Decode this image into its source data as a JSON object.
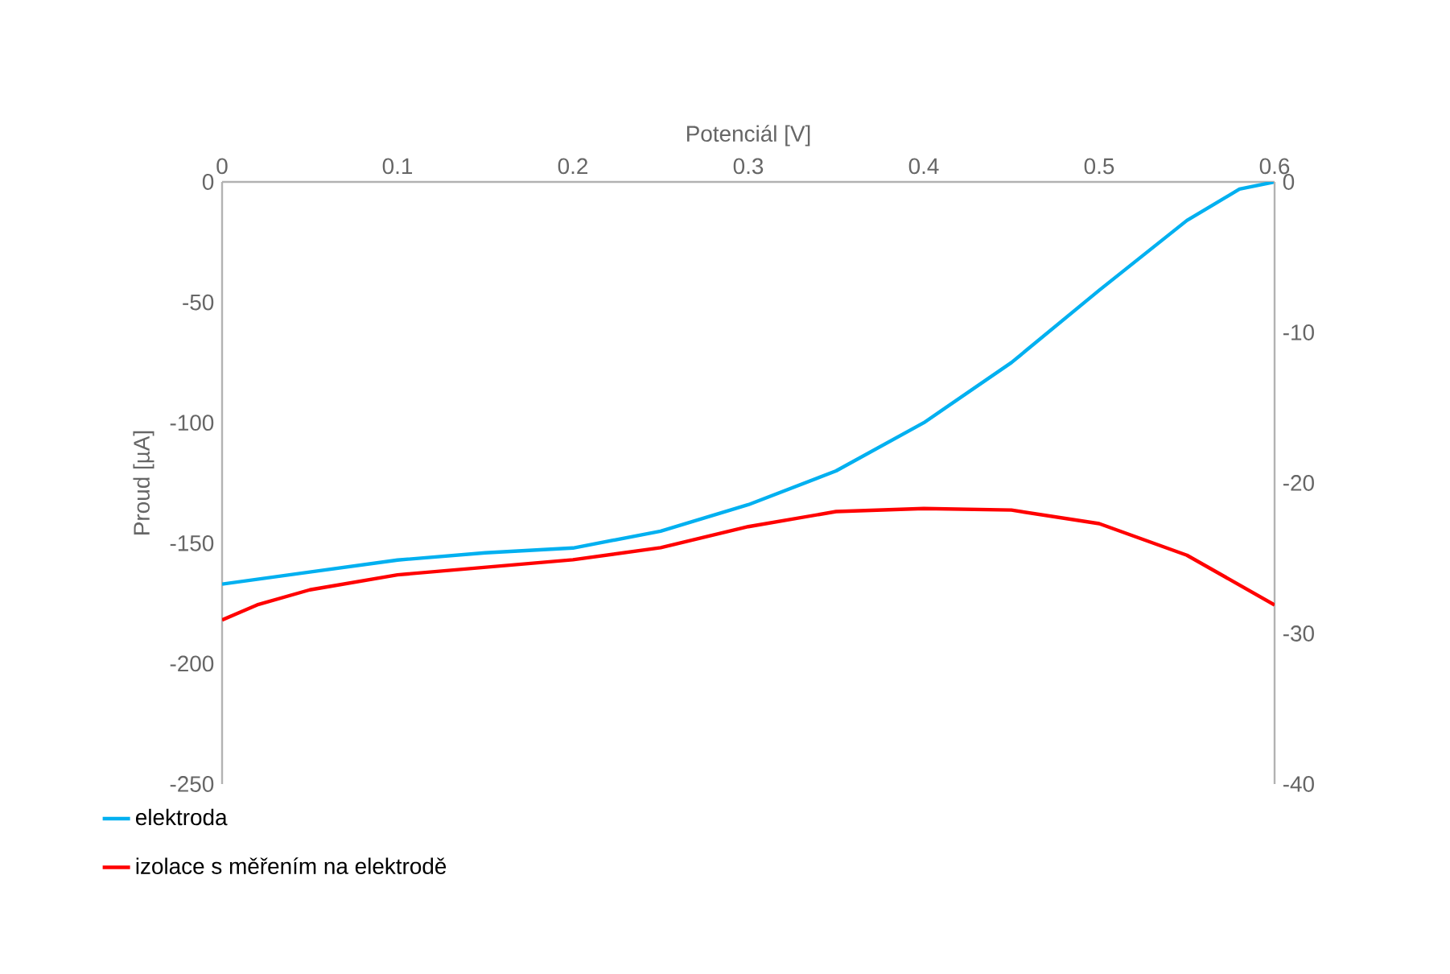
{
  "chart_data": {
    "type": "line",
    "xlabel": "Potenciál [V]",
    "ylabel": "Proud [µA]",
    "xlim": [
      0,
      0.6
    ],
    "xticks": [
      0,
      0.1,
      0.2,
      0.3,
      0.4,
      0.5,
      0.6
    ],
    "ylim": [
      -250,
      0
    ],
    "yticks": [
      -250,
      -200,
      -150,
      -100,
      -50,
      0
    ],
    "y2lim": [
      -40,
      0
    ],
    "y2ticks": [
      -40,
      -30,
      -20,
      -10,
      0
    ],
    "legend": "bottom",
    "series": [
      {
        "name": "elektroda",
        "color": "#00b0f0",
        "x": [
          0,
          0.05,
          0.1,
          0.15,
          0.2,
          0.25,
          0.3,
          0.35,
          0.4,
          0.45,
          0.5,
          0.55,
          0.58,
          0.6
        ],
        "values": [
          -167,
          -162,
          -157,
          -154,
          -152,
          -145,
          -134,
          -120,
          -100,
          -75,
          -45,
          -16,
          -3,
          0
        ]
      },
      {
        "name": "izolace s měřením na elektrodě",
        "color": "#ff0000",
        "axis": "y2",
        "x": [
          0,
          0.02,
          0.05,
          0.1,
          0.15,
          0.2,
          0.25,
          0.3,
          0.35,
          0.4,
          0.45,
          0.5,
          0.55,
          0.6
        ],
        "values": [
          -29.1,
          -28.1,
          -27.1,
          -26.1,
          -25.6,
          -25.1,
          -24.3,
          -22.9,
          -21.9,
          -21.7,
          -21.8,
          -22.7,
          -24.8,
          -28.1
        ]
      }
    ]
  }
}
